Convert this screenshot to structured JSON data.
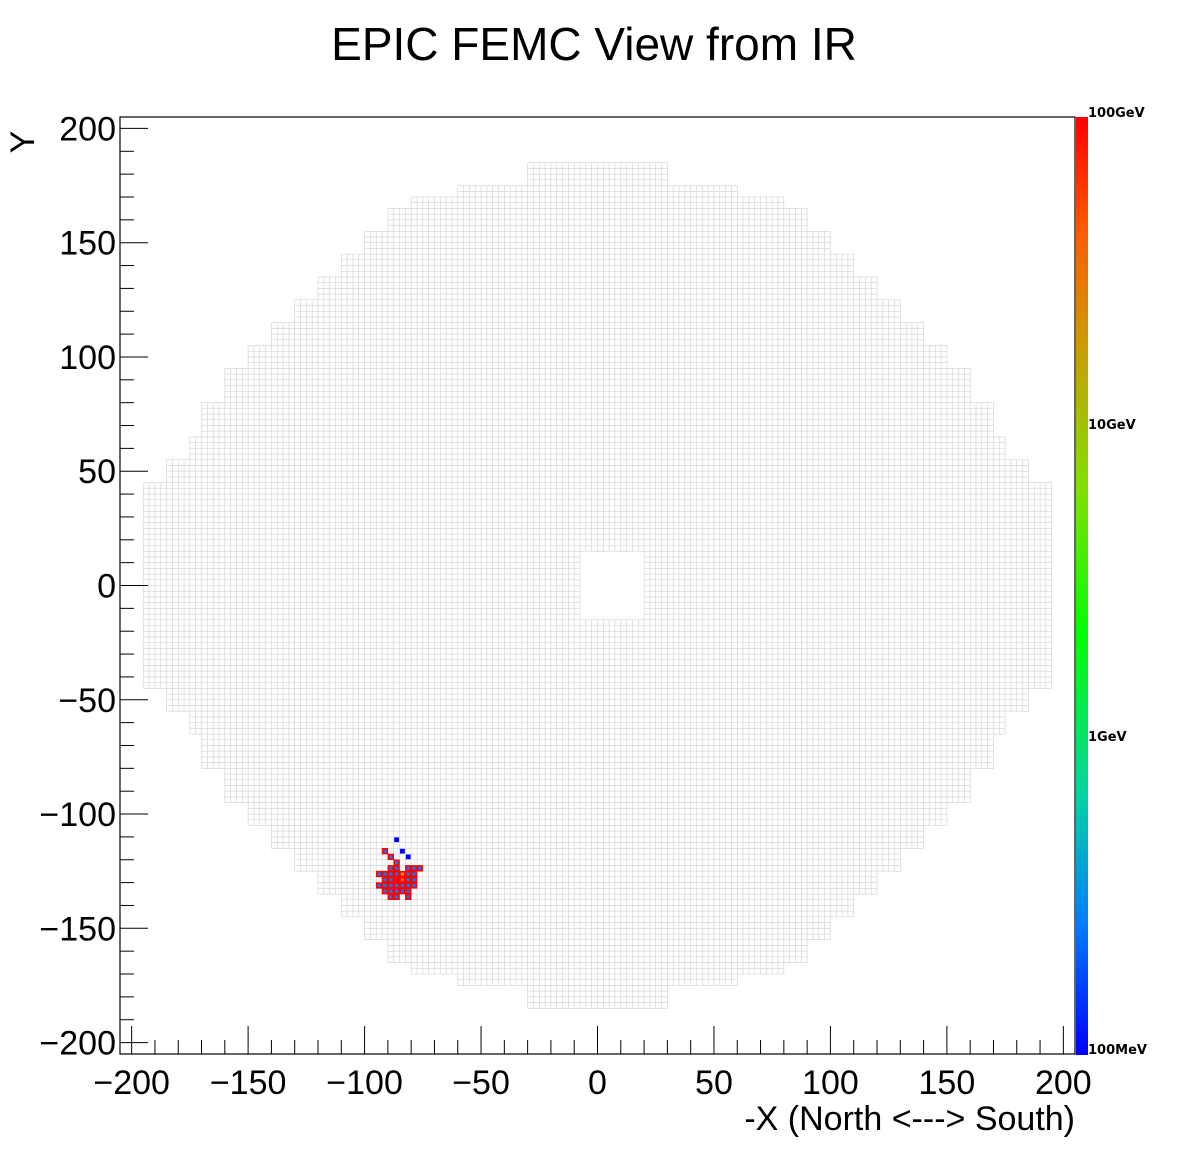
{
  "chart_data": {
    "type": "heatmap",
    "title": "EPIC FEMC View from IR",
    "xlabel": "-X (North <---> South)",
    "ylabel": "Y",
    "xlim": [
      -205,
      205
    ],
    "ylim": [
      -205,
      205
    ],
    "x_ticks": [
      -200,
      -150,
      -100,
      -50,
      0,
      50,
      100,
      150,
      200
    ],
    "y_ticks": [
      -200,
      -150,
      -100,
      -50,
      0,
      50,
      100,
      150,
      200
    ],
    "x_tick_labels": [
      "−200",
      "−150",
      "−100",
      "−50",
      "0",
      "50",
      "100",
      "150",
      "200"
    ],
    "y_tick_labels": [
      "−200",
      "−150",
      "−100",
      "−50",
      "0",
      "50",
      "100",
      "150",
      "200"
    ],
    "colorbar": {
      "scale": "log",
      "range": [
        "100MeV",
        "100GeV"
      ],
      "labels": [
        "100GeV",
        "10GeV",
        "1GeV",
        "100MeV"
      ],
      "colors": [
        "#0000ff",
        "#007dff",
        "#00d5a0",
        "#00ff00",
        "#7fe000",
        "#c8a000",
        "#ff5a00",
        "#ff0000"
      ]
    },
    "detector": {
      "cell_size": 2.5,
      "beam_hole": {
        "x": [
          -8,
          20
        ],
        "y": [
          -15,
          15
        ]
      },
      "grid_color": "#d0d0d0",
      "half_width_by_abs_y": [
        {
          "y_max": 45,
          "half_width": 195
        },
        {
          "y_max": 55,
          "half_width": 185
        },
        {
          "y_max": 65,
          "half_width": 175
        },
        {
          "y_max": 80,
          "half_width": 170
        },
        {
          "y_max": 95,
          "half_width": 160
        },
        {
          "y_max": 105,
          "half_width": 150
        },
        {
          "y_max": 115,
          "half_width": 140
        },
        {
          "y_max": 125,
          "half_width": 130
        },
        {
          "y_max": 135,
          "half_width": 120
        },
        {
          "y_max": 145,
          "half_width": 110
        },
        {
          "y_max": 155,
          "half_width": 100
        },
        {
          "y_max": 165,
          "half_width": 90
        },
        {
          "y_max": 170,
          "half_width": 80
        },
        {
          "y_max": 175,
          "half_width": 60
        },
        {
          "y_max": 185,
          "half_width": 30
        },
        {
          "y_max": 190,
          "half_width": 0
        }
      ]
    },
    "hits": [
      {
        "x": -87.5,
        "y": -112.5,
        "level": 0
      },
      {
        "x": -85,
        "y": -117.5,
        "level": 0
      },
      {
        "x": -82.5,
        "y": -120,
        "level": 0
      },
      {
        "x": -92.5,
        "y": -117.5,
        "level": 1
      },
      {
        "x": -90,
        "y": -120,
        "level": 1
      },
      {
        "x": -87.5,
        "y": -122.5,
        "level": 1
      },
      {
        "x": -87.5,
        "y": -125,
        "level": 1
      },
      {
        "x": -90,
        "y": -125,
        "level": 1
      },
      {
        "x": -82.5,
        "y": -125,
        "level": 1
      },
      {
        "x": -80,
        "y": -125,
        "level": 1
      },
      {
        "x": -77.5,
        "y": -125,
        "level": 1
      },
      {
        "x": -95,
        "y": -127.5,
        "level": 1
      },
      {
        "x": -92.5,
        "y": -127.5,
        "level": 1
      },
      {
        "x": -90,
        "y": -127.5,
        "level": 1
      },
      {
        "x": -87.5,
        "y": -127.5,
        "level": 1
      },
      {
        "x": -85,
        "y": -127.5,
        "level": 5
      },
      {
        "x": -82.5,
        "y": -127.5,
        "level": 1
      },
      {
        "x": -80,
        "y": -127.5,
        "level": 1
      },
      {
        "x": -92.5,
        "y": -130,
        "level": 1
      },
      {
        "x": -90,
        "y": -130,
        "level": 1
      },
      {
        "x": -87.5,
        "y": -130,
        "level": 7
      },
      {
        "x": -85,
        "y": -130,
        "level": 6
      },
      {
        "x": -82.5,
        "y": -130,
        "level": 1
      },
      {
        "x": -80,
        "y": -130,
        "level": 1
      },
      {
        "x": -95,
        "y": -132.5,
        "level": 1
      },
      {
        "x": -92.5,
        "y": -132.5,
        "level": 1
      },
      {
        "x": -90,
        "y": -132.5,
        "level": 1
      },
      {
        "x": -87.5,
        "y": -132.5,
        "level": 1
      },
      {
        "x": -85,
        "y": -132.5,
        "level": 1
      },
      {
        "x": -82.5,
        "y": -132.5,
        "level": 1
      },
      {
        "x": -80,
        "y": -132.5,
        "level": 1
      },
      {
        "x": -92.5,
        "y": -135,
        "level": 1
      },
      {
        "x": -90,
        "y": -135,
        "level": 1
      },
      {
        "x": -87.5,
        "y": -135,
        "level": 1
      },
      {
        "x": -85,
        "y": -135,
        "level": 1
      },
      {
        "x": -82.5,
        "y": -135,
        "level": 1
      },
      {
        "x": -90,
        "y": -137.5,
        "level": 1
      },
      {
        "x": -87.5,
        "y": -137.5,
        "level": 1
      },
      {
        "x": -82.5,
        "y": -137.5,
        "level": 1
      }
    ]
  }
}
